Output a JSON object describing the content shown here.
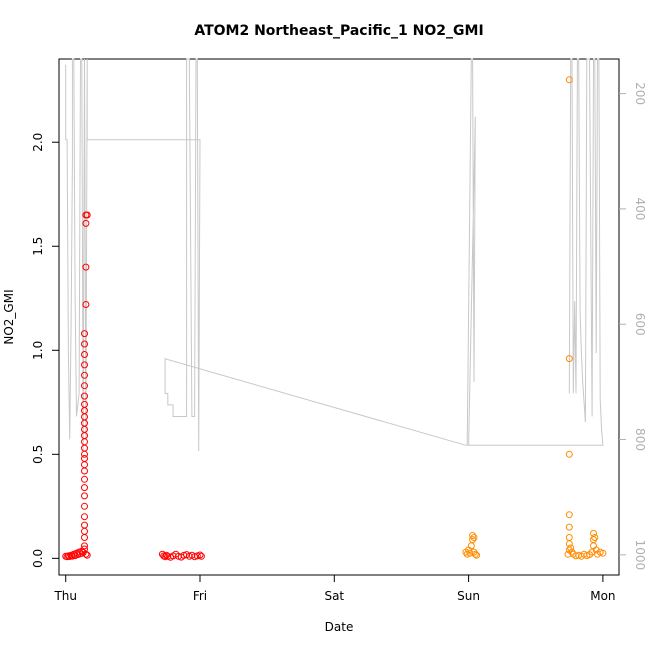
{
  "chart_data": {
    "type": "scatter",
    "title": "ATOM2 Northeast_Pacific_1 NO2_GMI",
    "xlabel": "Date",
    "ylabel": "NO2_GMI",
    "x_ticks": [
      "Thu",
      "Fri",
      "Sat",
      "Sun",
      "Mon"
    ],
    "x_range_days": [
      -0.05,
      4.12
    ],
    "ylim": [
      -0.08,
      2.4
    ],
    "y_ticks": [
      "0.0",
      "0.5",
      "1.0",
      "1.5",
      "2.0"
    ],
    "y2_ticks": [
      "200",
      "400",
      "600",
      "800",
      "1000"
    ],
    "y2_range": [
      140,
      1035
    ],
    "y2_reversed": true,
    "grid": false,
    "legend": "none",
    "colors": {
      "red_series": "#ff0000",
      "orange_series": "#ff8c00",
      "pressure_line": "#c8c8c8"
    },
    "series": [
      {
        "color": "#ff0000",
        "points": [
          [
            0.0,
            0.01
          ],
          [
            0.01,
            0.008
          ],
          [
            0.02,
            0.012
          ],
          [
            0.03,
            0.009
          ],
          [
            0.04,
            0.015
          ],
          [
            0.05,
            0.011
          ],
          [
            0.06,
            0.02
          ],
          [
            0.07,
            0.013
          ],
          [
            0.08,
            0.025
          ],
          [
            0.09,
            0.018
          ],
          [
            0.1,
            0.03
          ],
          [
            0.11,
            0.022
          ],
          [
            0.12,
            0.035
          ],
          [
            0.13,
            0.028
          ],
          [
            0.14,
            0.045
          ],
          [
            0.14,
            0.06
          ],
          [
            0.14,
            0.1
          ],
          [
            0.14,
            0.13
          ],
          [
            0.14,
            0.16
          ],
          [
            0.14,
            0.2
          ],
          [
            0.14,
            0.25
          ],
          [
            0.14,
            0.3
          ],
          [
            0.14,
            0.34
          ],
          [
            0.14,
            0.38
          ],
          [
            0.14,
            0.42
          ],
          [
            0.14,
            0.45
          ],
          [
            0.14,
            0.48
          ],
          [
            0.14,
            0.5
          ],
          [
            0.14,
            0.53
          ],
          [
            0.14,
            0.56
          ],
          [
            0.14,
            0.59
          ],
          [
            0.14,
            0.62
          ],
          [
            0.14,
            0.65
          ],
          [
            0.14,
            0.68
          ],
          [
            0.14,
            0.71
          ],
          [
            0.14,
            0.74
          ],
          [
            0.14,
            0.78
          ],
          [
            0.14,
            0.83
          ],
          [
            0.14,
            0.88
          ],
          [
            0.14,
            0.93
          ],
          [
            0.14,
            0.98
          ],
          [
            0.14,
            1.03
          ],
          [
            0.14,
            1.08
          ],
          [
            0.15,
            1.22
          ],
          [
            0.15,
            1.4
          ],
          [
            0.15,
            1.61
          ],
          [
            0.15,
            1.65
          ],
          [
            0.16,
            1.65
          ],
          [
            0.15,
            0.02
          ],
          [
            0.16,
            0.015
          ],
          [
            0.72,
            0.02
          ],
          [
            0.73,
            0.012
          ],
          [
            0.74,
            0.008
          ],
          [
            0.75,
            0.015
          ],
          [
            0.76,
            0.01
          ],
          [
            0.78,
            0.005
          ],
          [
            0.8,
            0.012
          ],
          [
            0.82,
            0.02
          ],
          [
            0.84,
            0.01
          ],
          [
            0.86,
            0.006
          ],
          [
            0.88,
            0.014
          ],
          [
            0.9,
            0.018
          ],
          [
            0.92,
            0.01
          ],
          [
            0.94,
            0.015
          ],
          [
            0.96,
            0.008
          ],
          [
            0.98,
            0.012
          ],
          [
            1.0,
            0.016
          ],
          [
            1.01,
            0.01
          ]
        ]
      },
      {
        "color": "#ff8c00",
        "points": [
          [
            2.98,
            0.03
          ],
          [
            2.99,
            0.02
          ],
          [
            3.0,
            0.04
          ],
          [
            3.01,
            0.025
          ],
          [
            3.02,
            0.06
          ],
          [
            3.03,
            0.09
          ],
          [
            3.03,
            0.11
          ],
          [
            3.04,
            0.1
          ],
          [
            3.04,
            0.03
          ],
          [
            3.05,
            0.02
          ],
          [
            3.06,
            0.015
          ],
          [
            3.74,
            0.02
          ],
          [
            3.75,
            0.04
          ],
          [
            3.75,
            0.07
          ],
          [
            3.75,
            0.1
          ],
          [
            3.75,
            0.15
          ],
          [
            3.75,
            0.21
          ],
          [
            3.75,
            0.5
          ],
          [
            3.75,
            0.96
          ],
          [
            3.75,
            2.3
          ],
          [
            3.76,
            0.05
          ],
          [
            3.77,
            0.03
          ],
          [
            3.78,
            0.02
          ],
          [
            3.8,
            0.012
          ],
          [
            3.82,
            0.015
          ],
          [
            3.84,
            0.01
          ],
          [
            3.86,
            0.02
          ],
          [
            3.88,
            0.013
          ],
          [
            3.9,
            0.018
          ],
          [
            3.92,
            0.03
          ],
          [
            3.93,
            0.06
          ],
          [
            3.93,
            0.09
          ],
          [
            3.93,
            0.12
          ],
          [
            3.94,
            0.1
          ],
          [
            3.95,
            0.04
          ],
          [
            3.96,
            0.02
          ],
          [
            3.98,
            0.03
          ],
          [
            4.0,
            0.025
          ]
        ]
      }
    ],
    "pressure_line": [
      [
        0.0,
        150
      ],
      [
        0.0,
        280
      ],
      [
        0.01,
        280
      ],
      [
        0.02,
        650
      ],
      [
        0.03,
        800
      ],
      [
        0.04,
        600
      ],
      [
        0.05,
        320
      ],
      [
        0.05,
        140
      ],
      [
        0.06,
        140
      ],
      [
        0.07,
        550
      ],
      [
        0.08,
        760
      ],
      [
        0.1,
        720
      ],
      [
        0.11,
        140
      ],
      [
        0.12,
        140
      ],
      [
        0.13,
        820
      ],
      [
        0.14,
        140
      ],
      [
        0.15,
        800
      ],
      [
        0.16,
        140
      ],
      [
        0.16,
        280
      ],
      [
        1.0,
        280
      ],
      [
        0.99,
        820
      ],
      [
        0.98,
        140
      ],
      [
        0.97,
        140
      ],
      [
        0.96,
        760
      ],
      [
        0.94,
        760
      ],
      [
        0.92,
        140
      ],
      [
        0.9,
        140
      ],
      [
        0.9,
        760
      ],
      [
        0.84,
        760
      ],
      [
        0.8,
        760
      ],
      [
        0.8,
        740
      ],
      [
        0.76,
        740
      ],
      [
        0.76,
        720
      ],
      [
        0.74,
        720
      ],
      [
        0.74,
        700
      ],
      [
        0.74,
        660
      ],
      [
        2.98,
        810
      ],
      [
        2.99,
        810
      ],
      [
        3.02,
        140
      ],
      [
        3.03,
        140
      ],
      [
        3.04,
        700
      ],
      [
        3.05,
        240
      ],
      [
        3.0,
        810
      ],
      [
        4.0,
        810
      ],
      [
        3.99,
        780
      ],
      [
        3.98,
        730
      ],
      [
        3.97,
        140
      ],
      [
        3.96,
        140
      ],
      [
        3.95,
        650
      ],
      [
        3.94,
        140
      ],
      [
        3.93,
        140
      ],
      [
        3.92,
        760
      ],
      [
        3.9,
        140
      ],
      [
        3.88,
        140
      ],
      [
        3.87,
        770
      ],
      [
        3.85,
        700
      ],
      [
        3.84,
        650
      ],
      [
        3.83,
        580
      ],
      [
        3.82,
        140
      ],
      [
        3.81,
        140
      ],
      [
        3.8,
        720
      ],
      [
        3.79,
        560
      ],
      [
        3.78,
        720
      ],
      [
        3.77,
        140
      ],
      [
        3.76,
        140
      ],
      [
        3.75,
        720
      ]
    ]
  }
}
